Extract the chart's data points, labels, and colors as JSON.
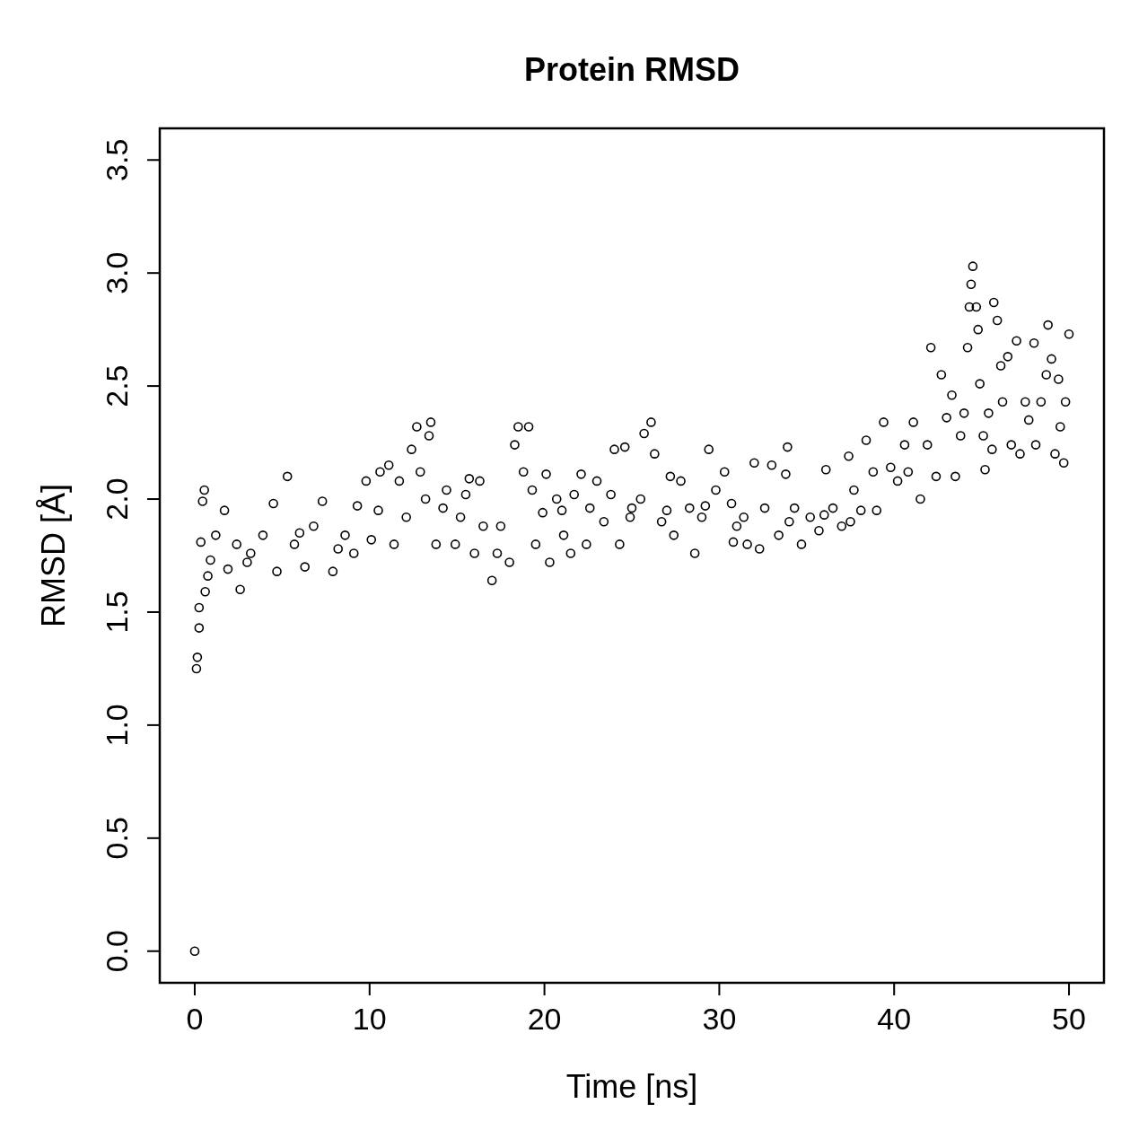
{
  "chart_data": {
    "type": "scatter",
    "title": "Protein RMSD",
    "xlabel": "Time [ns]",
    "ylabel": "RMSD [Å]",
    "xlim": [
      -2,
      52
    ],
    "xticks": [
      0,
      10,
      20,
      30,
      40,
      50
    ],
    "ylim": [
      -0.14,
      3.64
    ],
    "yticks": [
      {
        "value": 0,
        "label": "0.0"
      },
      {
        "value": 0.5,
        "label": "0.5"
      },
      {
        "value": 1,
        "label": "1.0"
      },
      {
        "value": 1.5,
        "label": "1.5"
      },
      {
        "value": 2,
        "label": "2.0"
      },
      {
        "value": 2.5,
        "label": "2.5"
      },
      {
        "value": 3,
        "label": "3.0"
      },
      {
        "value": 3.5,
        "label": "3.5"
      }
    ],
    "marker": "circle",
    "grid": false,
    "color": "#000000",
    "x": [
      0,
      0.1,
      0.15,
      0.25,
      0.25,
      0.35,
      0.45,
      0.55,
      0.6,
      0.75,
      0.9,
      1.2,
      1.7,
      1.9,
      2.4,
      2.6,
      3.0,
      3.2,
      3.9,
      4.5,
      4.7,
      5.3,
      5.7,
      6.0,
      6.3,
      6.8,
      7.3,
      7.9,
      8.2,
      8.6,
      9.1,
      9.3,
      9.8,
      10.1,
      10.5,
      10.6,
      11.1,
      11.4,
      11.7,
      12.1,
      12.4,
      12.7,
      12.9,
      13.2,
      13.4,
      13.5,
      13.8,
      14.2,
      14.4,
      14.9,
      15.2,
      15.5,
      15.7,
      16.0,
      16.3,
      16.5,
      17.0,
      17.3,
      17.5,
      18.0,
      18.3,
      18.5,
      18.8,
      19.1,
      19.3,
      19.5,
      19.9,
      20.1,
      20.3,
      20.7,
      21.0,
      21.1,
      21.5,
      21.7,
      22.1,
      22.4,
      22.6,
      23.0,
      23.4,
      23.8,
      24.0,
      24.3,
      24.6,
      24.9,
      25.0,
      25.5,
      25.7,
      26.1,
      26.3,
      26.7,
      27.0,
      27.2,
      27.4,
      27.8,
      28.3,
      28.6,
      29.0,
      29.2,
      29.4,
      29.8,
      30.3,
      30.7,
      30.8,
      31.0,
      31.4,
      31.6,
      32.0,
      32.3,
      32.6,
      33.0,
      33.4,
      33.8,
      33.9,
      34.0,
      34.3,
      34.7,
      35.2,
      35.7,
      36.0,
      36.1,
      36.5,
      37.0,
      37.4,
      37.5,
      37.7,
      38.1,
      38.4,
      38.8,
      39.0,
      39.4,
      39.8,
      40.2,
      40.6,
      40.8,
      41.1,
      41.5,
      41.9,
      42.1,
      42.4,
      42.7,
      43.0,
      43.3,
      43.5,
      43.8,
      44.0,
      44.2,
      44.3,
      44.4,
      44.5,
      44.7,
      44.8,
      44.9,
      45.1,
      45.2,
      45.4,
      45.6,
      45.7,
      45.9,
      46.1,
      46.2,
      46.5,
      46.7,
      47.0,
      47.2,
      47.5,
      47.7,
      48.0,
      48.1,
      48.4,
      48.7,
      48.8,
      49.0,
      49.2,
      49.4,
      49.5,
      49.7,
      49.8,
      50.0
    ],
    "values": [
      0,
      1.25,
      1.3,
      1.43,
      1.52,
      1.81,
      1.99,
      2.04,
      1.59,
      1.66,
      1.73,
      1.84,
      1.95,
      1.69,
      1.8,
      1.6,
      1.72,
      1.76,
      1.84,
      1.98,
      1.68,
      2.1,
      1.8,
      1.85,
      1.7,
      1.88,
      1.99,
      1.68,
      1.78,
      1.84,
      1.76,
      1.97,
      2.08,
      1.82,
      1.95,
      2.12,
      2.15,
      1.8,
      2.08,
      1.92,
      2.22,
      2.32,
      2.12,
      2.0,
      2.28,
      2.34,
      1.8,
      1.96,
      2.04,
      1.8,
      1.92,
      2.02,
      2.09,
      1.76,
      2.08,
      1.88,
      1.64,
      1.76,
      1.88,
      1.72,
      2.24,
      2.32,
      2.12,
      2.32,
      2.04,
      1.8,
      1.94,
      2.11,
      1.72,
      2.0,
      1.95,
      1.84,
      1.76,
      2.02,
      2.11,
      1.8,
      1.96,
      2.08,
      1.9,
      2.02,
      2.22,
      1.8,
      2.23,
      1.92,
      1.96,
      2.0,
      2.29,
      2.34,
      2.2,
      1.9,
      1.95,
      2.1,
      1.84,
      2.08,
      1.96,
      1.76,
      1.92,
      1.97,
      2.22,
      2.04,
      2.12,
      1.98,
      1.81,
      1.88,
      1.92,
      1.8,
      2.16,
      1.78,
      1.96,
      2.15,
      1.84,
      2.11,
      2.23,
      1.9,
      1.96,
      1.8,
      1.92,
      1.86,
      1.93,
      2.13,
      1.96,
      1.88,
      2.19,
      1.9,
      2.04,
      1.95,
      2.26,
      2.12,
      1.95,
      2.34,
      2.14,
      2.08,
      2.24,
      2.12,
      2.34,
      2.0,
      2.24,
      2.67,
      2.1,
      2.55,
      2.36,
      2.46,
      2.1,
      2.28,
      2.38,
      2.67,
      2.85,
      2.95,
      3.03,
      2.85,
      2.75,
      2.51,
      2.28,
      2.13,
      2.38,
      2.22,
      2.87,
      2.79,
      2.59,
      2.43,
      2.63,
      2.24,
      2.7,
      2.2,
      2.43,
      2.35,
      2.69,
      2.24,
      2.43,
      2.55,
      2.77,
      2.62,
      2.2,
      2.53,
      2.32,
      2.16,
      2.43,
      2.73
    ]
  }
}
